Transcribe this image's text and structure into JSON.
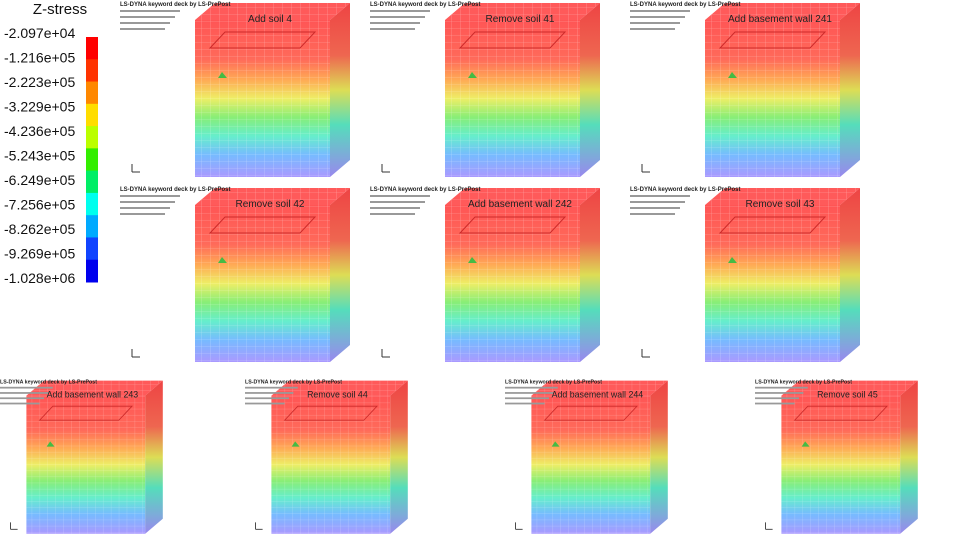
{
  "legend": {
    "title": "Z-stress",
    "labels": [
      "-2.097e+04",
      "-1.216e+05",
      "-2.223e+05",
      "-3.229e+05",
      "-4.236e+05",
      "-5.243e+05",
      "-6.249e+05",
      "-7.256e+05",
      "-8.262e+05",
      "-9.269e+05",
      "-1.028e+06"
    ],
    "colors": [
      "#ff0000",
      "#ff3300",
      "#ff8800",
      "#ffdd00",
      "#bbff00",
      "#33ee00",
      "#00ee66",
      "#00ffee",
      "#00aaff",
      "#1144ff",
      "#0000ee"
    ]
  },
  "panels": [
    {
      "header": "LS-DYNA keyword deck by LS-PrePost",
      "caption": "Add soil 4"
    },
    {
      "header": "LS-DYNA keyword deck by LS-PrePost",
      "caption": "Remove soil 41"
    },
    {
      "header": "LS-DYNA keyword deck by LS-PrePost",
      "caption": "Add basement wall 241"
    },
    {
      "header": "LS-DYNA keyword deck by LS-PrePost",
      "caption": "Remove soil 42"
    },
    {
      "header": "LS-DYNA keyword deck by LS-PrePost",
      "caption": "Add basement wall 242"
    },
    {
      "header": "LS-DYNA keyword deck by LS-PrePost",
      "caption": "Remove soil 43"
    },
    {
      "header": "LS-DYNA keyword deck by LS-PrePost",
      "caption": "Add basement wall 243"
    },
    {
      "header": "LS-DYNA keyword deck by LS-PrePost",
      "caption": "Remove soil 44"
    },
    {
      "header": "LS-DYNA keyword deck by LS-PrePost",
      "caption": "Add basement wall 244"
    },
    {
      "header": "LS-DYNA keyword deck by LS-PrePost",
      "caption": "Remove soil 45"
    }
  ]
}
